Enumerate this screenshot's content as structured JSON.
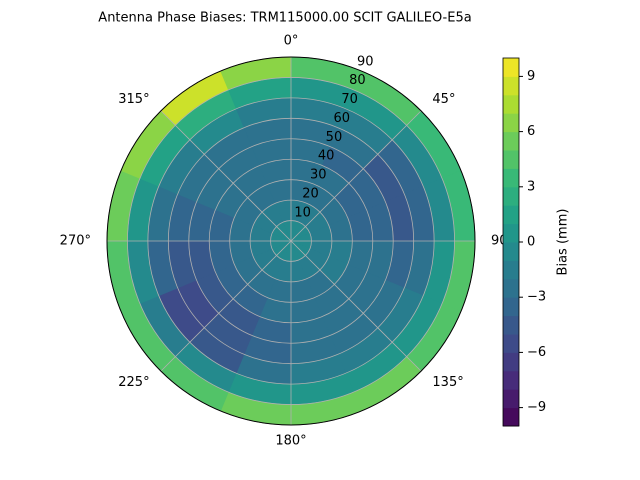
{
  "chart_data": {
    "type": "polar_contour",
    "title": "Antenna Phase Biases: TRM115000.00    SCIT GALILEO-E5a",
    "colormap": "viridis",
    "colorbar_label": "Bias (mm)",
    "clim": [
      -10,
      10
    ],
    "levels": [
      -10,
      -9,
      -8,
      -7,
      -6,
      -5,
      -4,
      -3,
      -2,
      -1,
      0,
      1,
      2,
      3,
      4,
      5,
      6,
      7,
      8,
      9,
      10
    ],
    "cticks": [
      {
        "value": -9,
        "label": "−9"
      },
      {
        "value": -6,
        "label": "−6"
      },
      {
        "value": -3,
        "label": "−3"
      },
      0,
      3,
      6,
      9
    ],
    "rlim": [
      0,
      90
    ],
    "rticks": [
      10,
      20,
      30,
      40,
      50,
      60,
      70,
      80,
      90
    ],
    "thetaticks": [
      {
        "value": 0,
        "label": "0°"
      },
      {
        "value": 45,
        "label": "45°"
      },
      {
        "value": 90,
        "label": "90"
      },
      {
        "value": 135,
        "label": "135°"
      },
      {
        "value": 180,
        "label": "180°"
      },
      {
        "value": 225,
        "label": "225°"
      },
      {
        "value": 270,
        "label": "270°"
      },
      {
        "value": 315,
        "label": "315°"
      }
    ],
    "grid": true,
    "zenith_edges": [
      0,
      10,
      20,
      30,
      40,
      50,
      60,
      70,
      80,
      90
    ],
    "azimuth_edges": [
      0,
      22.5,
      45,
      67.5,
      90,
      112.5,
      135,
      157.5,
      180,
      202.5,
      225,
      247.5,
      270,
      292.5,
      315,
      337.5,
      360
    ],
    "values": [
      [
        -1,
        -1,
        -1,
        -1,
        -1,
        -1,
        -1,
        -1,
        -1,
        -1,
        -1,
        -1,
        -1,
        -1,
        -1,
        -1
      ],
      [
        -2,
        -2,
        -2,
        -2,
        -2,
        -2,
        -2,
        -2,
        -2,
        -2,
        -2,
        -2,
        -2,
        -2,
        -2,
        -2
      ],
      [
        -3,
        -3,
        -3,
        -3,
        -2,
        -2,
        -3,
        -3,
        -3,
        -3,
        -3,
        -3,
        -3,
        -3,
        -3,
        -3
      ],
      [
        -3,
        -3,
        -4,
        -4,
        -3,
        -3,
        -3,
        -3,
        -3,
        -4,
        -4,
        -4,
        -4,
        -3,
        -3,
        -3
      ],
      [
        -3,
        -4,
        -4,
        -4,
        -3,
        -3,
        -3,
        -3,
        -4,
        -5,
        -5,
        -5,
        -4,
        -3,
        -3,
        -3
      ],
      [
        -3,
        -3,
        -5,
        -5,
        -4,
        -3,
        -3,
        -3,
        -4,
        -5,
        -6,
        -5,
        -4,
        -3,
        -3,
        -3
      ],
      [
        -2,
        -2,
        -4,
        -4,
        -3,
        -2,
        -2,
        -2,
        -3,
        -5,
        -6,
        -4,
        -3,
        -2,
        -1,
        -2
      ],
      [
        0,
        0,
        -1,
        -1,
        0,
        0,
        0,
        0,
        0,
        -1,
        -2,
        -1,
        0,
        1,
        2,
        1
      ],
      [
        4,
        4,
        3,
        3,
        4,
        4,
        5,
        5,
        5,
        4,
        4,
        4,
        5,
        6,
        8,
        6
      ]
    ]
  }
}
